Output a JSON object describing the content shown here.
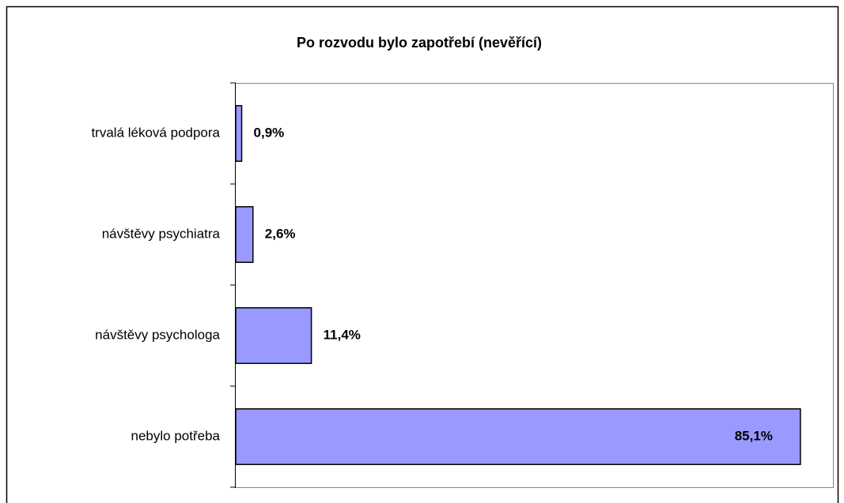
{
  "chart_data": {
    "type": "bar",
    "orientation": "horizontal",
    "title": "Po rozvodu bylo zapotřebí (nevěřící)",
    "categories": [
      "trvalá léková podpora",
      "návštěvy psychiatra",
      "návštěvy psychologa",
      "nebylo potřeba"
    ],
    "values": [
      0.9,
      2.6,
      11.4,
      85.1
    ],
    "value_labels": [
      "0,9%",
      "2,6%",
      "11,4%",
      "85,1%"
    ],
    "color": "#9999ff",
    "xlim": [
      0,
      90
    ]
  }
}
